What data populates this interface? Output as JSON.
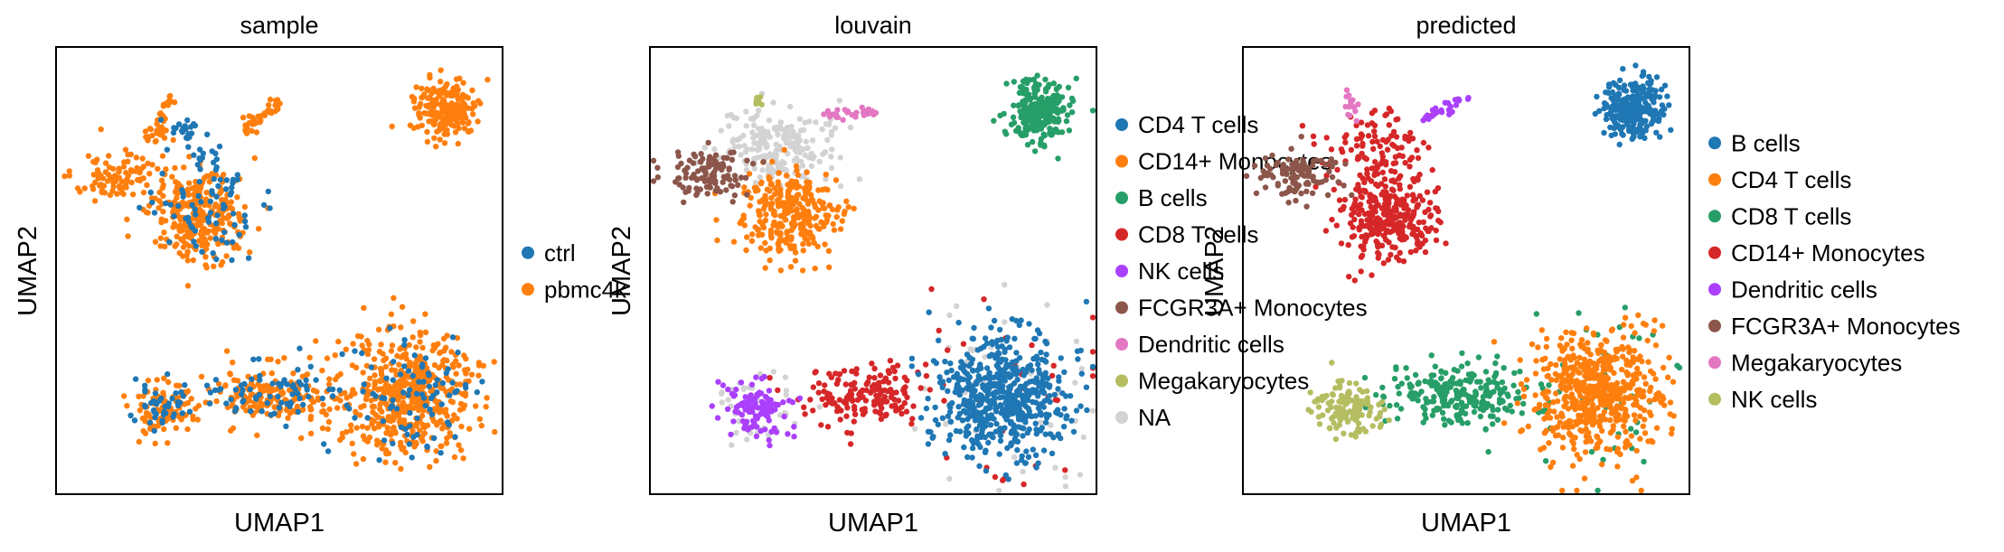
{
  "figure": {
    "xlabel": "UMAP1",
    "ylabel": "UMAP2"
  },
  "chart_data": [
    {
      "type": "scatter",
      "title": "sample",
      "xlabel": "UMAP1",
      "ylabel": "UMAP2",
      "grid": false,
      "legend_position": "right",
      "series": [
        {
          "name": "ctrl",
          "color": "#1f77b4"
        },
        {
          "name": "pbmc4k",
          "color": "#ff7f0e"
        }
      ]
    },
    {
      "type": "scatter",
      "title": "louvain",
      "xlabel": "UMAP1",
      "ylabel": "UMAP2",
      "grid": false,
      "legend_position": "right",
      "series": [
        {
          "name": "CD4 T cells",
          "color": "#1f77b4"
        },
        {
          "name": "CD14+ Monocytes",
          "color": "#ff7f0e"
        },
        {
          "name": "B cells",
          "color": "#279e68"
        },
        {
          "name": "CD8 T cells",
          "color": "#d62728"
        },
        {
          "name": "NK cells",
          "color": "#aa40fc"
        },
        {
          "name": "FCGR3A+ Monocytes",
          "color": "#8c564b"
        },
        {
          "name": "Dendritic cells",
          "color": "#e377c2"
        },
        {
          "name": "Megakaryocytes",
          "color": "#b5bd61"
        },
        {
          "name": "NA",
          "color": "#d3d3d3"
        }
      ]
    },
    {
      "type": "scatter",
      "title": "predicted",
      "xlabel": "UMAP1",
      "ylabel": "UMAP2",
      "grid": false,
      "legend_position": "right",
      "series": [
        {
          "name": "B cells",
          "color": "#1f77b4"
        },
        {
          "name": "CD4 T cells",
          "color": "#ff7f0e"
        },
        {
          "name": "CD8 T cells",
          "color": "#279e68"
        },
        {
          "name": "CD14+ Monocytes",
          "color": "#d62728"
        },
        {
          "name": "Dendritic cells",
          "color": "#aa40fc"
        },
        {
          "name": "FCGR3A+ Monocytes",
          "color": "#8c564b"
        },
        {
          "name": "Megakaryocytes",
          "color": "#e377c2"
        },
        {
          "name": "NK cells",
          "color": "#b5bd61"
        }
      ]
    }
  ]
}
